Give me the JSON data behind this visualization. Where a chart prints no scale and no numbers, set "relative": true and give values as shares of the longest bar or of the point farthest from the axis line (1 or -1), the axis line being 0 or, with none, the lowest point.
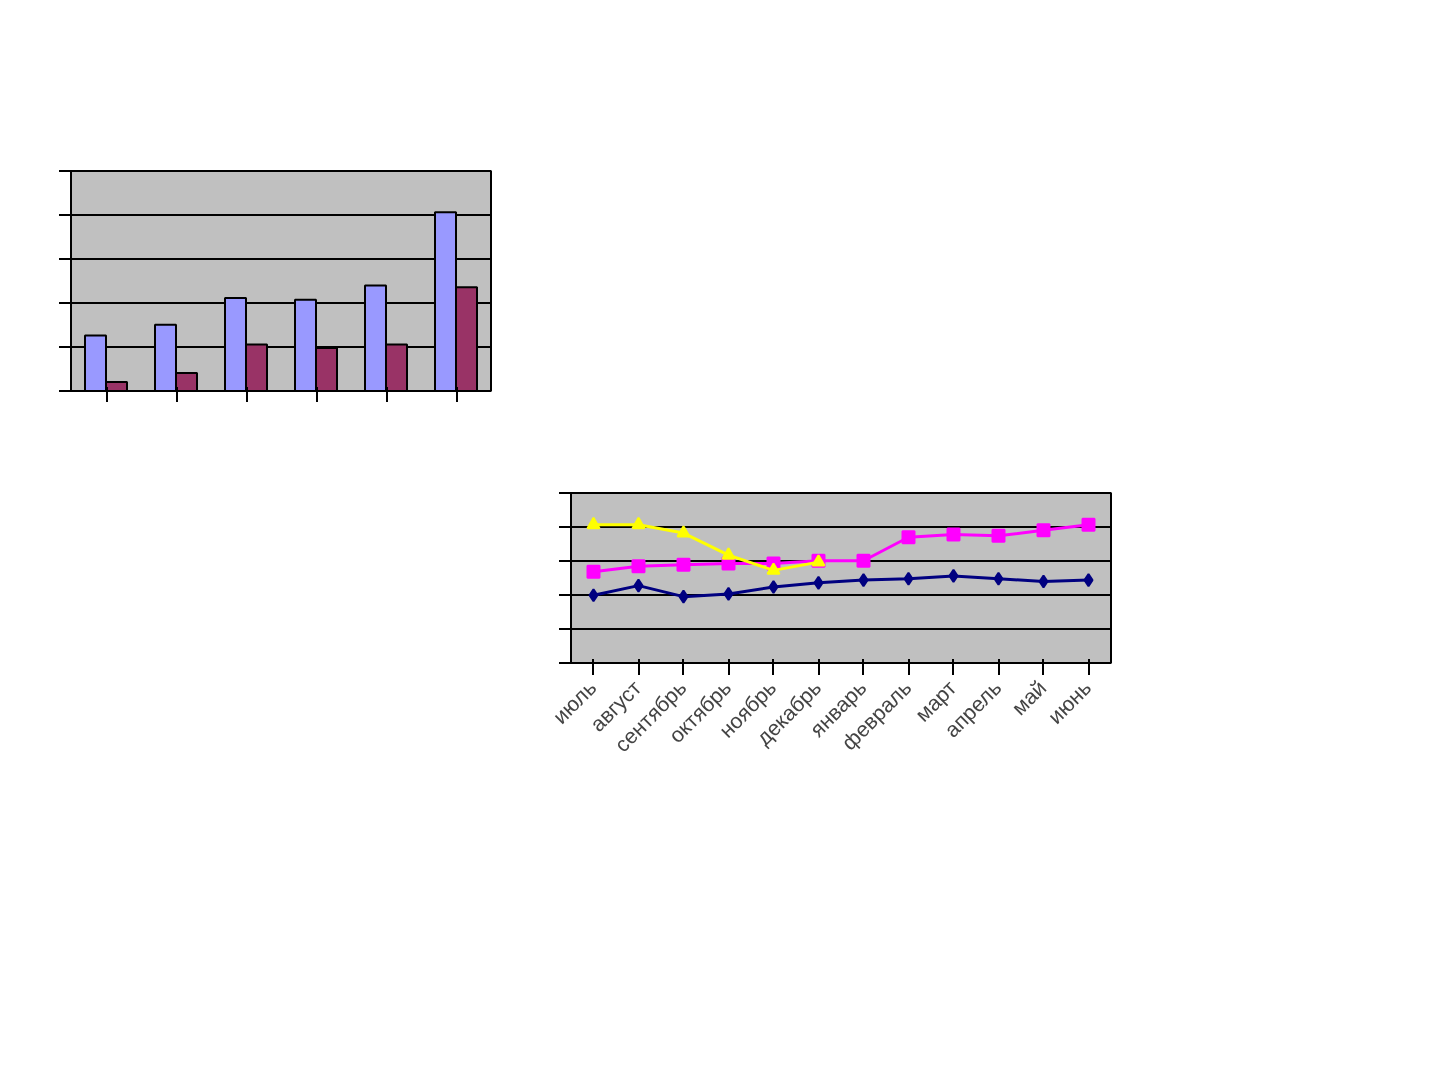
{
  "chart_data": [
    {
      "type": "bar",
      "relative": true,
      "grid": "y",
      "categories": [
        null,
        null,
        null,
        null,
        null,
        null
      ],
      "series": [
        {
          "color": "#9999ff",
          "values": [
            0.31,
            0.37,
            0.52,
            0.51,
            0.59,
            1.0
          ]
        },
        {
          "color": "#993366",
          "values": [
            0.05,
            0.1,
            0.26,
            0.24,
            0.26,
            0.58
          ]
        }
      ]
    },
    {
      "type": "line",
      "relative": true,
      "grid": "y",
      "categories": [
        "июль",
        "август",
        "сентябрь",
        "октябрь",
        "ноябрь",
        "декабрь",
        "январь",
        "февраль",
        "март",
        "апрель",
        "май",
        "июнь"
      ],
      "series": [
        {
          "color": "#000080",
          "marker": "diamond",
          "values": [
            0.49,
            0.56,
            0.48,
            0.5,
            0.55,
            0.58,
            0.6,
            0.61,
            0.63,
            0.61,
            0.59,
            0.6
          ]
        },
        {
          "color": "#ff00ff",
          "marker": "square",
          "values": [
            0.66,
            0.7,
            0.71,
            0.72,
            0.72,
            0.74,
            0.74,
            0.91,
            0.93,
            0.92,
            0.96,
            1.0
          ]
        },
        {
          "color": "#ffff00",
          "marker": "triangle",
          "values": [
            1.0,
            1.0,
            0.94,
            0.78,
            0.67,
            0.73,
            null,
            null,
            null,
            null,
            null,
            null
          ]
        }
      ]
    }
  ]
}
